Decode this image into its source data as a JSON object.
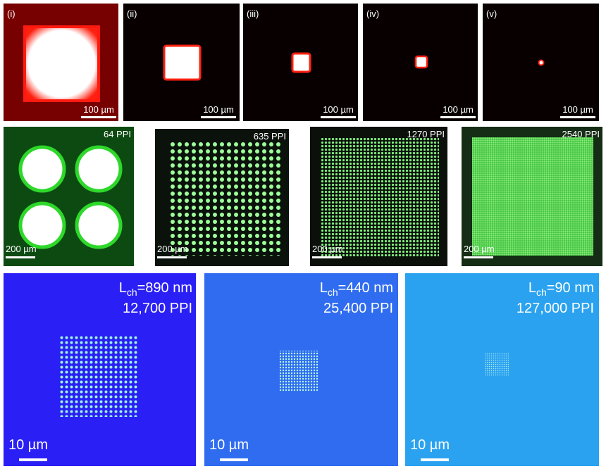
{
  "figure": {
    "row1": [
      {
        "label": "(i)",
        "scale": "100 µm"
      },
      {
        "label": "(ii)",
        "scale": "100 µm"
      },
      {
        "label": "(iii)",
        "scale": "100 µm"
      },
      {
        "label": "(iv)",
        "scale": "100 µm"
      },
      {
        "label": "(v)",
        "scale": "100 µm"
      }
    ],
    "row2": [
      {
        "ppi": "64 PPI",
        "scale": "200 µm"
      },
      {
        "ppi": "635 PPI",
        "scale": "200 µm"
      },
      {
        "ppi": "1270 PPI",
        "scale": "200 µm"
      },
      {
        "ppi": "2540 PPI",
        "scale": "200 µm"
      }
    ],
    "row3": [
      {
        "symbol": "L",
        "subscript": "ch",
        "length": "=890 nm",
        "ppi": "12,700 PPI",
        "scale": "10 µm"
      },
      {
        "symbol": "L",
        "subscript": "ch",
        "length": "=440 nm",
        "ppi": "25,400 PPI",
        "scale": "10 µm"
      },
      {
        "symbol": "L",
        "subscript": "ch",
        "length": "=90 nm",
        "ppi": "127,000 PPI",
        "scale": "10 µm"
      }
    ]
  }
}
